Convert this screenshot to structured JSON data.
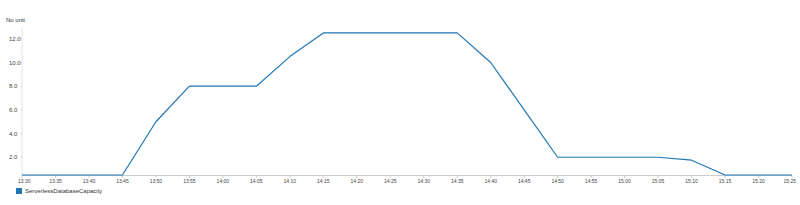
{
  "chart_data": {
    "type": "line",
    "y_label": "No unit",
    "categories": [
      "13:30",
      "13:35",
      "13:40",
      "13:45",
      "13:50",
      "13:55",
      "14:00",
      "14:05",
      "14:10",
      "14:15",
      "14:20",
      "14:25",
      "14:30",
      "14:35",
      "14:40",
      "14:45",
      "14:50",
      "14:55",
      "15:00",
      "15:05",
      "15:10",
      "15:15",
      "15:20",
      "15:25"
    ],
    "series": [
      {
        "name": "ServerlessDatabaseCapacity",
        "color": "#1f77b4",
        "values": [
          0.5,
          0.5,
          0.5,
          0.5,
          5,
          8,
          8,
          8,
          10.5,
          12.5,
          12.5,
          12.5,
          12.5,
          12.5,
          10,
          6,
          2,
          2,
          2,
          2,
          1.75,
          0.5,
          0.5,
          0.5
        ]
      }
    ],
    "ylim": [
      0.5,
      13
    ],
    "yticks": [
      {
        "value": 2,
        "label": "2.0"
      },
      {
        "value": 4,
        "label": "4.0"
      },
      {
        "value": 6,
        "label": "6.0"
      },
      {
        "value": 8,
        "label": "8.0"
      },
      {
        "value": 10,
        "label": "10.0"
      },
      {
        "value": 12,
        "label": "12.0"
      }
    ],
    "grid": false,
    "legend": "bottom-left"
  }
}
